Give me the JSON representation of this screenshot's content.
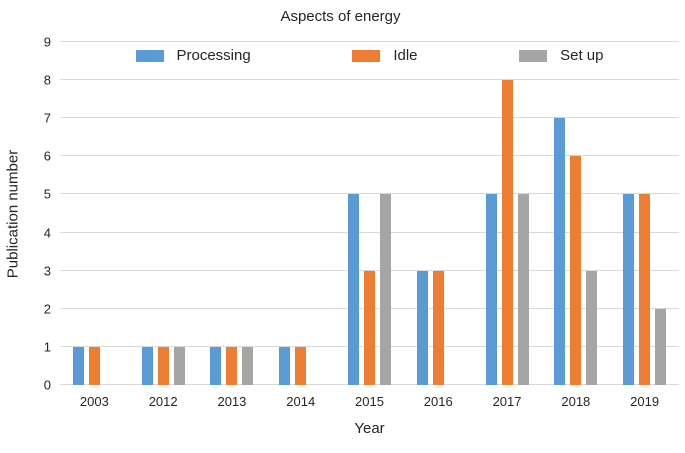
{
  "chart_data": {
    "type": "bar",
    "subtype": "grouped",
    "title": "Aspects of energy",
    "xlabel": "Year",
    "ylabel": "Publication number",
    "categories": [
      "2003",
      "2012",
      "2013",
      "2014",
      "2015",
      "2016",
      "2017",
      "2018",
      "2019"
    ],
    "series": [
      {
        "name": "Processing",
        "color": "#5B9BD5",
        "values": [
          1,
          1,
          1,
          1,
          5,
          3,
          5,
          7,
          5
        ]
      },
      {
        "name": "Idle",
        "color": "#ED7D31",
        "values": [
          1,
          1,
          1,
          1,
          3,
          3,
          8,
          6,
          5
        ]
      },
      {
        "name": "Set up",
        "color": "#A5A5A5",
        "values": [
          0,
          1,
          1,
          0,
          5,
          0,
          5,
          3,
          2
        ]
      }
    ],
    "ylim": [
      0,
      9
    ],
    "ytick_step": 1,
    "grid": true,
    "gridline_color": "#D9D9D9",
    "legend_position": "top",
    "background_color": "#FFFFFF",
    "text_color": "#262626"
  }
}
